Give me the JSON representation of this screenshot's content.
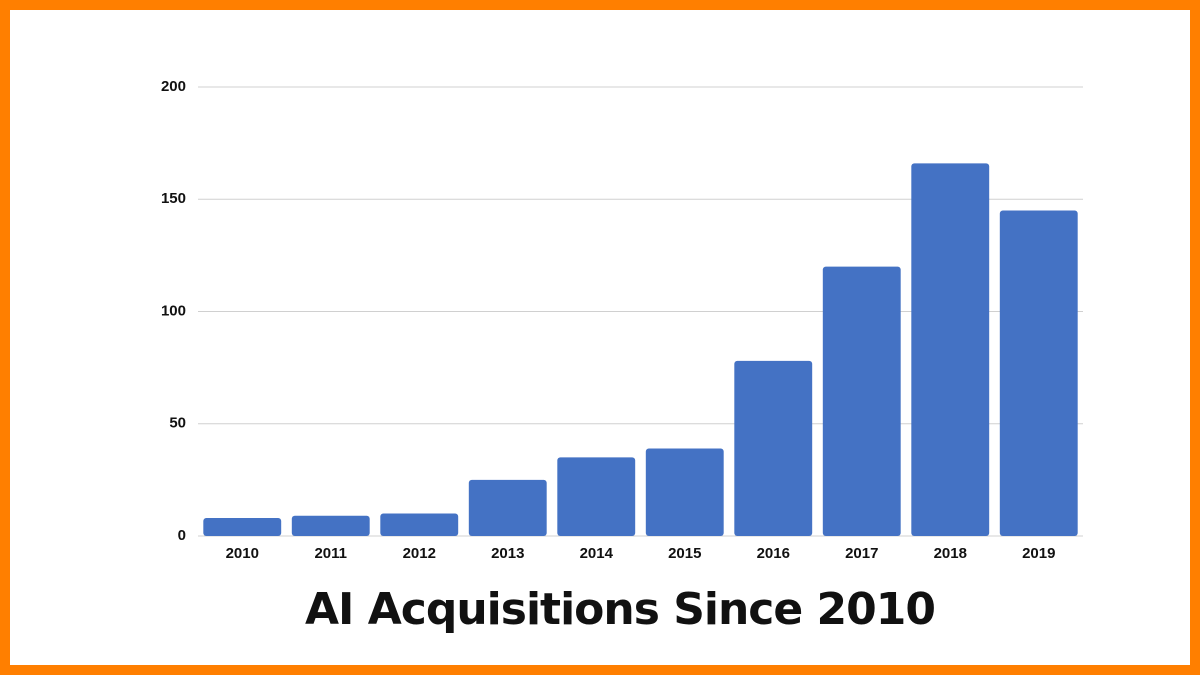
{
  "chart_data": {
    "type": "bar",
    "title": "AI Acquisitions Since 2010",
    "categories": [
      "2010",
      "2011",
      "2012",
      "2013",
      "2014",
      "2015",
      "2016",
      "2017",
      "2018",
      "2019"
    ],
    "values": [
      8,
      9,
      10,
      25,
      35,
      39,
      78,
      120,
      166,
      145
    ],
    "color": "#4472c4",
    "ylim": [
      0,
      200
    ],
    "yticks": [
      0,
      50,
      100,
      150,
      200
    ],
    "grid": true
  }
}
